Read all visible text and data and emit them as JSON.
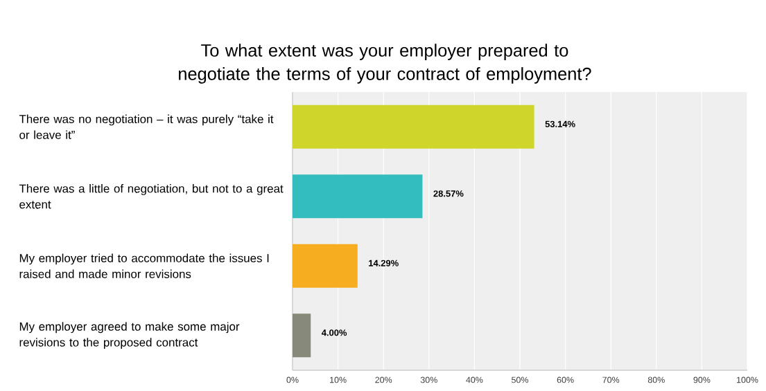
{
  "chart_data": {
    "type": "bar",
    "orientation": "horizontal",
    "title": "To what extent was your employer prepared to negotiate the terms of your contract of employment?",
    "categories": [
      "There was no negotiation –  it was purely “take it or leave it”",
      "There was a little of negotiation, but not to a great extent",
      "My employer tried to accommodate the issues I raised and made minor revisions",
      "My employer agreed to make some major revisions to the proposed contract"
    ],
    "values": [
      53.14,
      28.57,
      14.29,
      4.0
    ],
    "colors": [
      "#cfd52a",
      "#33bdbf",
      "#f6ae20",
      "#878a7a"
    ],
    "value_labels": [
      "53.14%",
      "28.57%",
      "14.29%",
      "4.00%"
    ],
    "xlim": [
      0,
      100
    ],
    "xticks": [
      {
        "value": 0,
        "label": "0%"
      },
      {
        "value": 10,
        "label": "10%"
      },
      {
        "value": 20,
        "label": "20%"
      },
      {
        "value": 30,
        "label": "30%"
      },
      {
        "value": 40,
        "label": "40%"
      },
      {
        "value": 50,
        "label": "50%"
      },
      {
        "value": 60,
        "label": "60%"
      },
      {
        "value": 70,
        "label": "70%"
      },
      {
        "value": 80,
        "label": "80%"
      },
      {
        "value": 90,
        "label": "90%"
      },
      {
        "value": 100,
        "label": "100%"
      }
    ],
    "grid": "x"
  }
}
